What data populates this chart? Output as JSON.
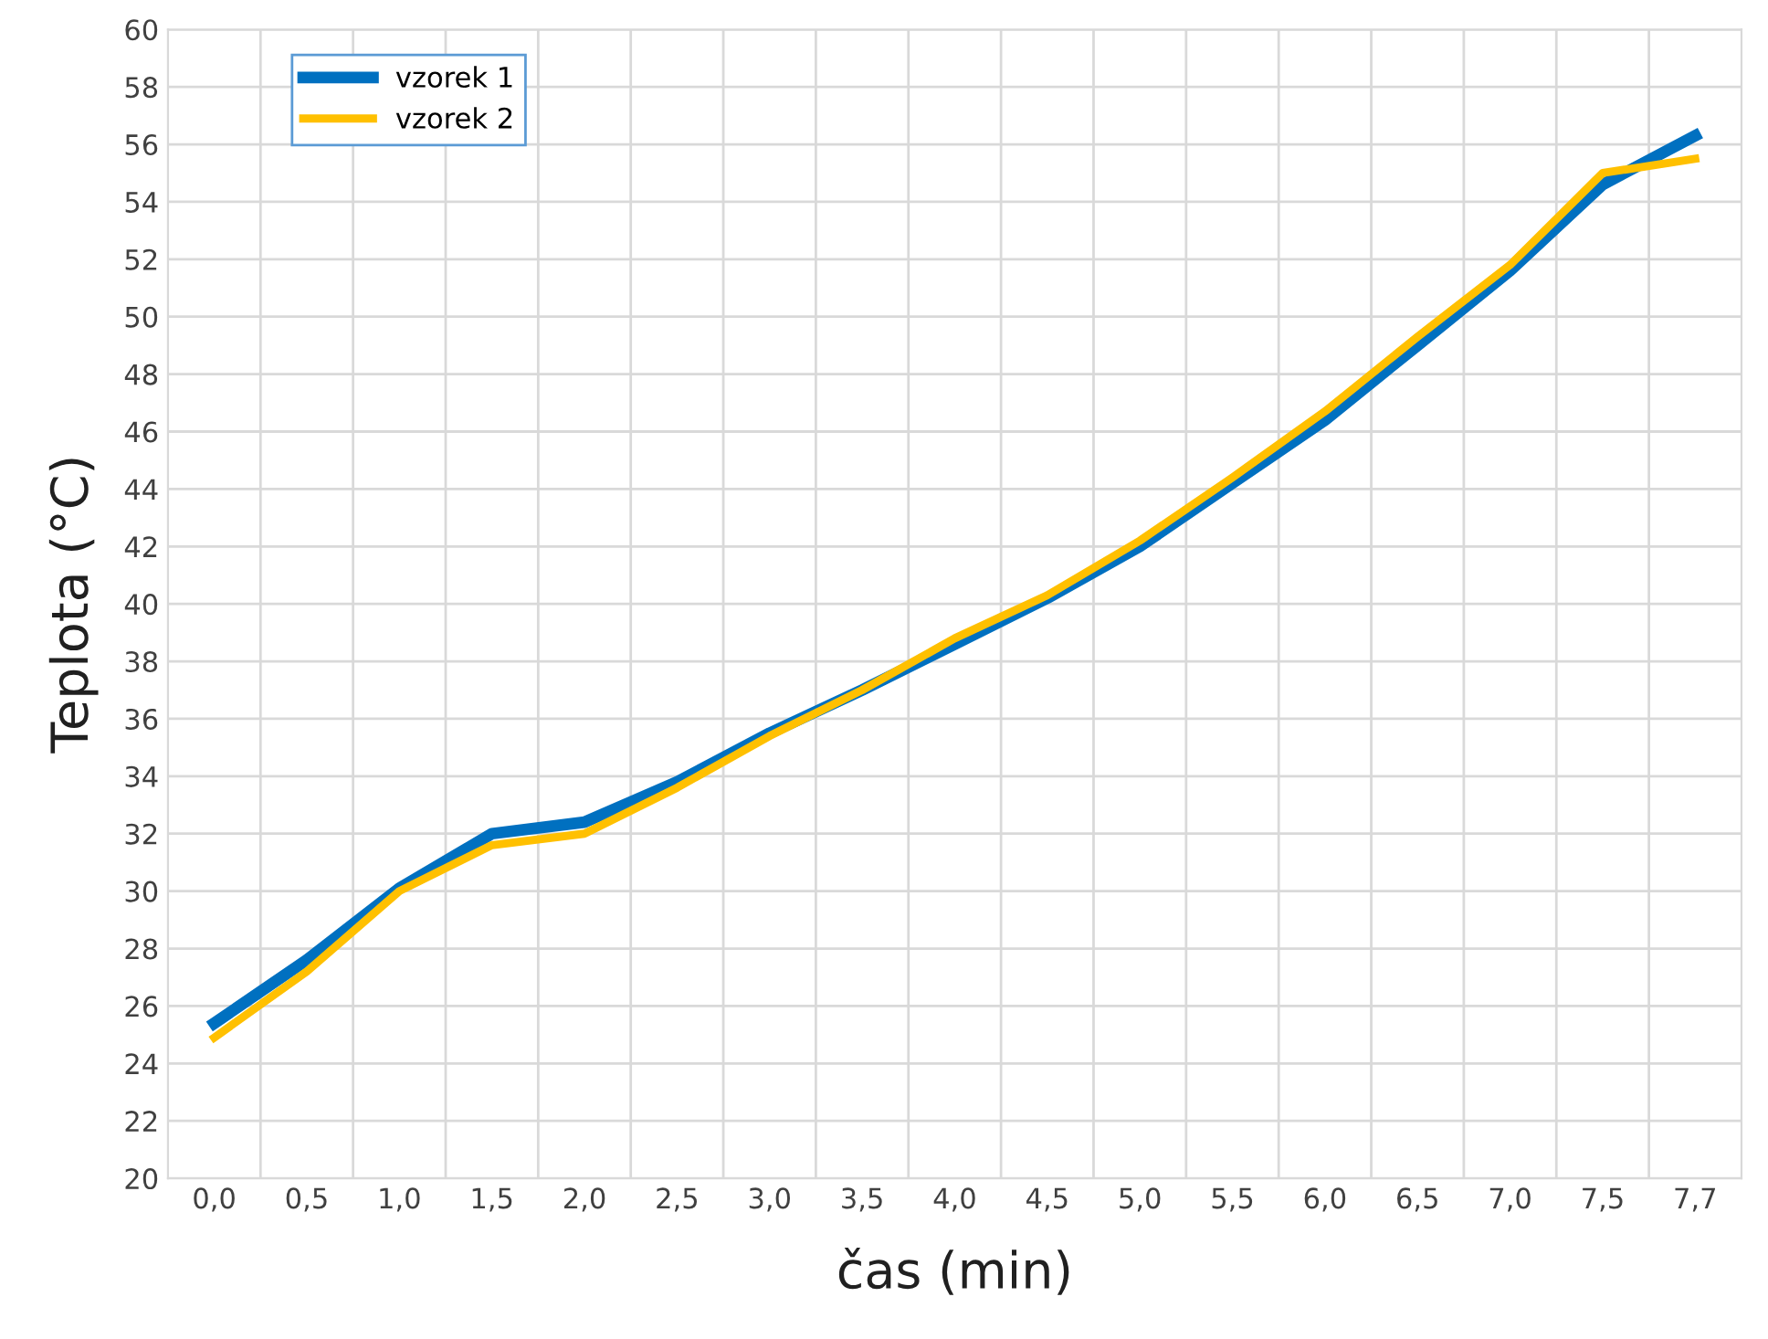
{
  "chart_data": {
    "type": "line",
    "xlabel": "čas (min)",
    "ylabel": "Teplota (°C)",
    "categories": [
      "0,0",
      "0,5",
      "1,0",
      "1,5",
      "2,0",
      "2,5",
      "3,0",
      "3,5",
      "4,0",
      "4,5",
      "5,0",
      "5,5",
      "6,0",
      "6,5",
      "7,0",
      "7,5",
      "7,7"
    ],
    "series": [
      {
        "name": "vzorek 1",
        "color": "#0070c0",
        "values": [
          25.4,
          27.6,
          30.1,
          32.0,
          32.4,
          33.8,
          35.5,
          37.0,
          38.6,
          40.2,
          42.0,
          44.2,
          46.4,
          49.0,
          51.6,
          54.6,
          56.3
        ]
      },
      {
        "name": "vzorek 2",
        "color": "#ffc000",
        "values": [
          24.9,
          27.2,
          30.0,
          31.6,
          32.0,
          33.6,
          35.4,
          37.0,
          38.8,
          40.3,
          42.2,
          44.4,
          46.7,
          49.3,
          51.8,
          55.0,
          55.5
        ]
      }
    ],
    "ylim": [
      20,
      60
    ],
    "yticks": [
      20,
      22,
      24,
      26,
      28,
      30,
      32,
      34,
      36,
      38,
      40,
      42,
      44,
      46,
      48,
      50,
      52,
      54,
      56,
      58,
      60
    ],
    "grid": true,
    "legend": "top left",
    "marker": "none",
    "line_style": "solid"
  }
}
